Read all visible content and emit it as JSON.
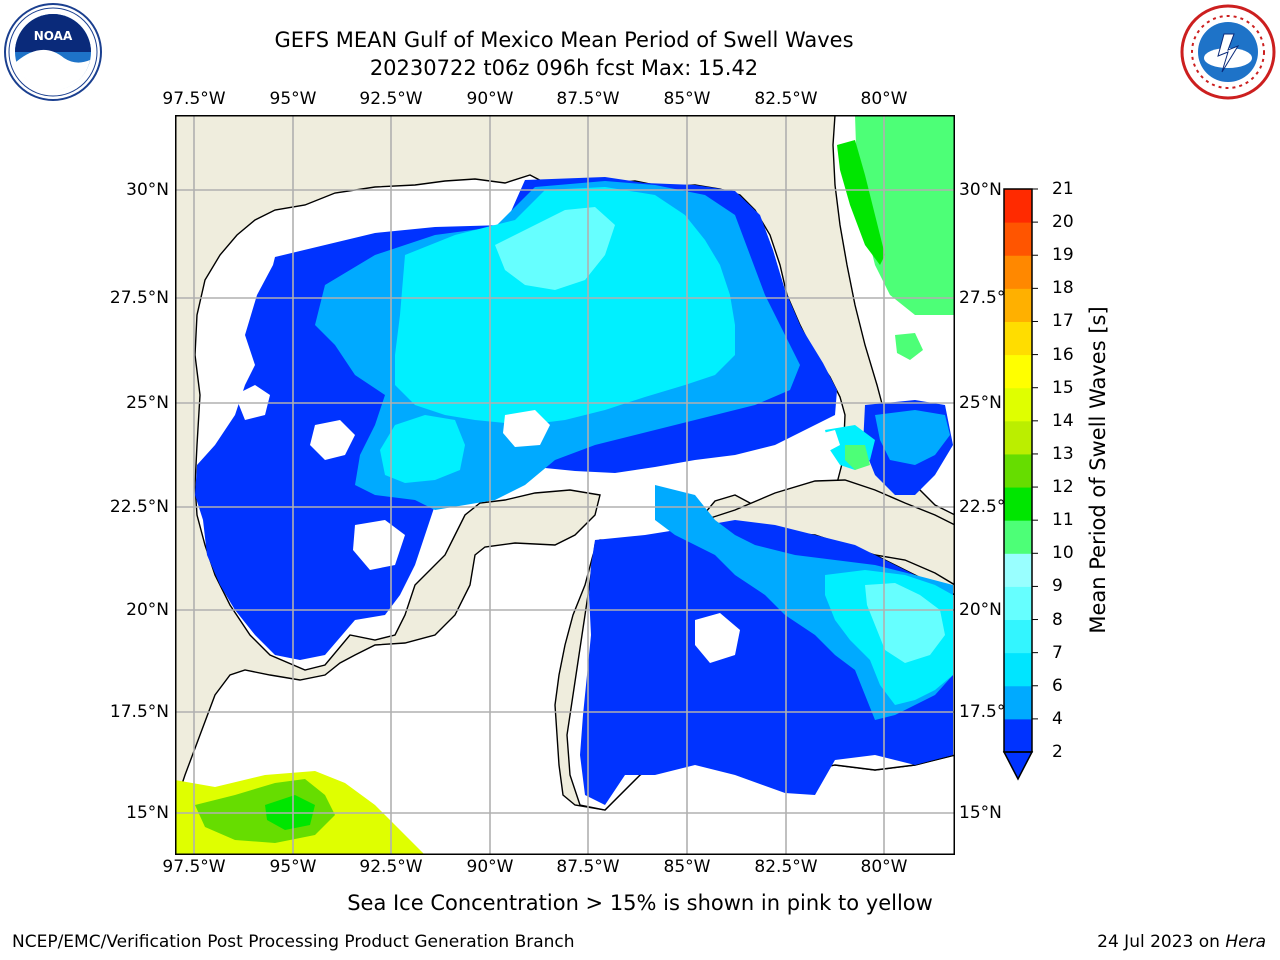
{
  "title": {
    "line1": "GEFS MEAN Gulf of Mexico Mean Period of Swell Waves",
    "line2": "20230722 t06z 096h fcst   Max: 15.42"
  },
  "map": {
    "lon_ticks_top": [
      "97.5°W",
      "95°W",
      "92.5°W",
      "90°W",
      "87.5°W",
      "85°W",
      "82.5°W",
      "80°W"
    ],
    "lon_ticks_bottom": [
      "97.5°W",
      "95°W",
      "92.5°W",
      "90°W",
      "87.5°W",
      "85°W",
      "82.5°W",
      "80°W"
    ],
    "lat_ticks_left": [
      "30°N",
      "27.5°N",
      "25°N",
      "22.5°N",
      "20°N",
      "17.5°N",
      "15°N"
    ],
    "lat_ticks_right": [
      "30°N",
      "27.5°N",
      "25°N",
      "22.5°N",
      "20°N",
      "17.5°N",
      "15°N"
    ],
    "extent": {
      "lon_min": -98,
      "lon_max": -78.3,
      "lat_min": 14,
      "lat_max": 31.7
    },
    "colors": {
      "land": "#efeddd",
      "ocean_nodata": "#ffffff",
      "grid": "#b0b0b0",
      "coast": "#000000"
    }
  },
  "colorbar": {
    "label": "Mean Period of Swell Waves [s]",
    "ticks": [
      "2",
      "4",
      "6",
      "7",
      "8",
      "9",
      "10",
      "11",
      "12",
      "13",
      "14",
      "15",
      "16",
      "17",
      "18",
      "19",
      "20",
      "21"
    ],
    "colors": [
      "#0033ff",
      "#00aaff",
      "#00e5ff",
      "#33f5ff",
      "#66ffff",
      "#99ffff",
      "#4dff77",
      "#00e600",
      "#66dd00",
      "#bbee00",
      "#dfff00",
      "#ffff00",
      "#ffdd00",
      "#ffb000",
      "#ff8800",
      "#ff5500",
      "#ff2a00",
      "#ff0000"
    ]
  },
  "logos": {
    "left": "NOAA",
    "right": "NATIONAL WEATHER SERVICE"
  },
  "note": "Sea Ice Concentration > 15% is shown in pink to yellow",
  "footer": {
    "left": "NCEP/EMC/Verification Post Processing Product Generation Branch",
    "right_prefix": "24 Jul 2023 on ",
    "right_machine": "Hera"
  }
}
